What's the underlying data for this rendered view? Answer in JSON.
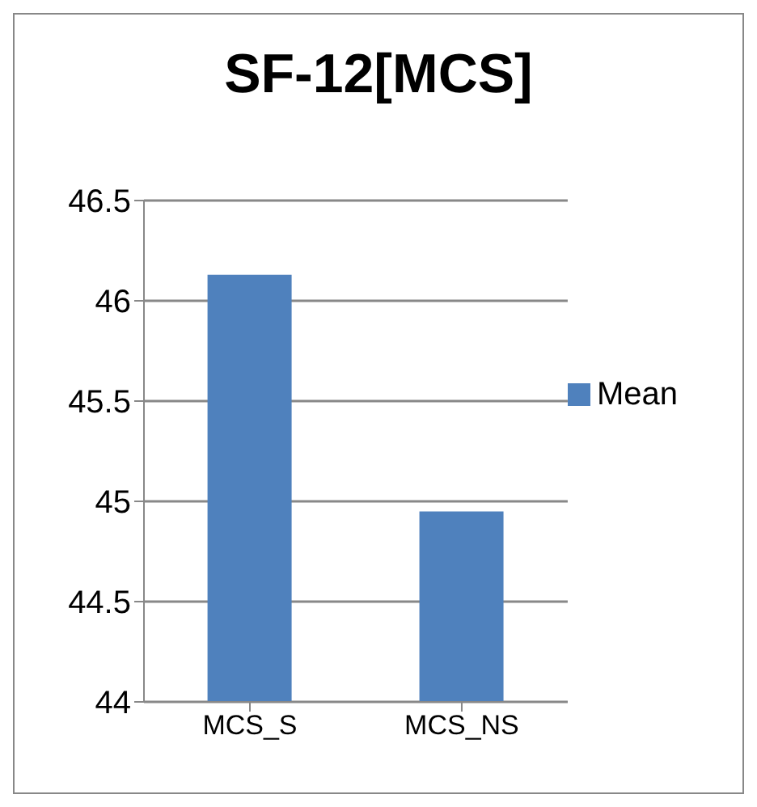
{
  "chart_data": {
    "type": "bar",
    "title": "SF-12[MCS]",
    "categories": [
      "MCS_S",
      "MCS_NS"
    ],
    "series": [
      {
        "name": "Mean",
        "color": "#4f81bd",
        "values": [
          46.13,
          44.95
        ]
      }
    ],
    "ylim": [
      44,
      46.5
    ],
    "yticks": [
      44,
      44.5,
      45,
      45.5,
      46,
      46.5
    ],
    "grid": "y",
    "legend": "right"
  }
}
